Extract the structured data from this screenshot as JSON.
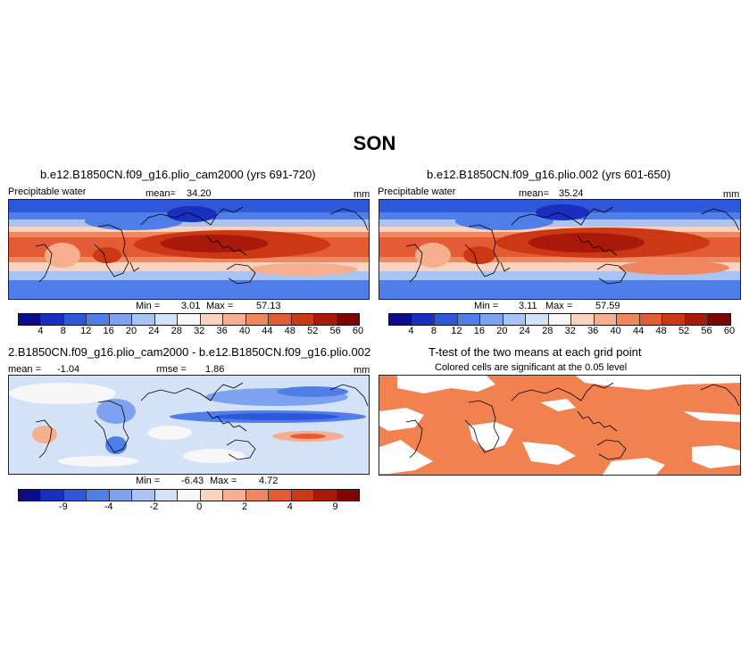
{
  "season": "SON",
  "panel1": {
    "case": "b.e12.B1850CN.f09_g16.plio_cam2000 (yrs 691-720)",
    "variable": "Precipitable water",
    "mean_label": "mean=",
    "mean": "34.20",
    "units": "mm",
    "min_label": "Min =",
    "min": "3.01",
    "max_label": "Max =",
    "max": "57.13"
  },
  "panel2": {
    "case": "b.e12.B1850CN.f09_g16.plio.002 (yrs 601-650)",
    "variable": "Precipitable water",
    "mean_label": "mean=",
    "mean": "35.24",
    "units": "mm",
    "min_label": "Min =",
    "min": "3.11",
    "max_label": "Max =",
    "max": "57.59"
  },
  "panel3": {
    "title": "2.B1850CN.f09_g16.plio_cam2000 - b.e12.B1850CN.f09_g16.plio.002",
    "mean_label": "mean =",
    "mean": "-1.04",
    "rmse_label": "rmse =",
    "rmse": "1.86",
    "units": "mm",
    "min_label": "Min =",
    "min": "-6.43",
    "max_label": "Max =",
    "max": "4.72"
  },
  "panel4": {
    "title": "T-test of the two means at each grid point",
    "subtitle": "Colored cells are significant at the 0.05 level"
  },
  "colorbar_abs": {
    "colors": [
      "#0a0c8c",
      "#1a2fbf",
      "#2f57d9",
      "#4f7ee8",
      "#7ea2ef",
      "#a9c4f2",
      "#d4e2f7",
      "#f7f7f7",
      "#fad2bd",
      "#f5ae8e",
      "#f0875f",
      "#e45c34",
      "#cc3716",
      "#a8190a",
      "#7e0505"
    ],
    "ticks": [
      "4",
      "8",
      "12",
      "16",
      "20",
      "24",
      "28",
      "32",
      "36",
      "40",
      "44",
      "48",
      "52",
      "56",
      "60"
    ]
  },
  "colorbar_diff": {
    "colors": [
      "#0a0c8c",
      "#1a2fbf",
      "#2f57d9",
      "#4f7ee8",
      "#7ea2ef",
      "#a9c4f2",
      "#d4e2f7",
      "#f7f7f7",
      "#fad2bd",
      "#f5ae8e",
      "#f0875f",
      "#e45c34",
      "#cc3716",
      "#a8190a",
      "#7e0505"
    ],
    "ticks": [
      "-9",
      "-4",
      "-2",
      "0",
      "2",
      "4",
      "9"
    ]
  },
  "colors": {
    "significant": "#f28150"
  }
}
